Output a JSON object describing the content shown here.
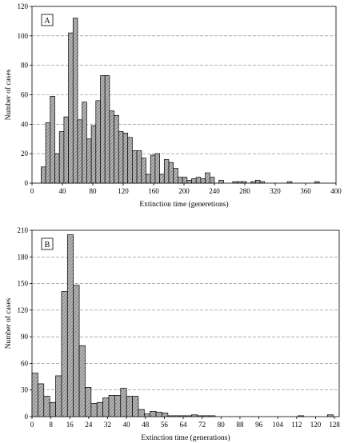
{
  "chart_data": [
    {
      "type": "bar",
      "panel_label": "A",
      "xlabel": "Extinction time (generetions)",
      "ylabel": "Number of cases",
      "xlim": [
        0,
        400
      ],
      "ylim": [
        0,
        120
      ],
      "xticks": [
        "0",
        "40",
        "80",
        "120",
        "160",
        "200",
        "240",
        "280",
        "320",
        "360",
        "400"
      ],
      "yticks": [
        "0",
        "20",
        "40",
        "60",
        "80",
        "100",
        "120"
      ],
      "bin_width": 6,
      "bins_start": [
        12,
        18,
        24,
        30,
        36,
        42,
        48,
        54,
        60,
        66,
        72,
        78,
        84,
        90,
        96,
        102,
        108,
        114,
        120,
        126,
        132,
        138,
        144,
        150,
        156,
        162,
        168,
        174,
        180,
        186,
        192,
        198,
        204,
        210,
        216,
        222,
        228,
        234,
        240,
        246,
        252,
        258,
        264,
        270,
        276,
        282,
        288,
        294,
        300,
        306,
        312,
        318,
        324,
        330,
        336,
        342,
        348,
        354,
        360,
        366,
        372,
        378,
        384,
        390
      ],
      "values": [
        11,
        41,
        59,
        20,
        35,
        45,
        102,
        112,
        43,
        55,
        30,
        39,
        56,
        73,
        73,
        49,
        46,
        35,
        34,
        31,
        22,
        22,
        17,
        6,
        19,
        20,
        6,
        16,
        14,
        10,
        4,
        4,
        2,
        3,
        4,
        3,
        7,
        4,
        0,
        2,
        0,
        0,
        1,
        1,
        1,
        0,
        1,
        2,
        1,
        0,
        0,
        0,
        0,
        0,
        1,
        0,
        0,
        0,
        0,
        0,
        1,
        0,
        0,
        0
      ],
      "grid": "horizontal dashed",
      "colors": {
        "bar_fill": "#a9a9a9",
        "bar_stroke": "#000000",
        "grid": "#808080"
      }
    },
    {
      "type": "bar",
      "panel_label": "B",
      "xlabel": "Extinction time (generations)",
      "ylabel": "Number of cases",
      "xlim": [
        0,
        130
      ],
      "ylim": [
        0,
        210
      ],
      "xticks": [
        "0",
        "8",
        "16",
        "24",
        "32",
        "40",
        "48",
        "56",
        "64",
        "72",
        "80",
        "88",
        "96",
        "104",
        "112",
        "120",
        "128"
      ],
      "yticks": [
        "0",
        "30",
        "60",
        "90",
        "120",
        "150",
        "180",
        "210"
      ],
      "bin_width": 2.5,
      "bins_start": [
        0,
        2.5,
        5,
        7.5,
        10,
        12.5,
        15,
        17.5,
        20,
        22.5,
        25,
        27.5,
        30,
        32.5,
        35,
        37.5,
        40,
        42.5,
        45,
        47.5,
        50,
        52.5,
        55,
        57.5,
        60,
        62.5,
        65,
        67.5,
        70,
        72.5,
        75,
        77.5,
        80,
        82.5,
        85,
        87.5,
        90,
        92.5,
        95,
        97.5,
        100,
        102.5,
        105,
        107.5,
        110,
        112.5,
        115,
        117.5,
        120,
        122.5,
        125,
        127.5
      ],
      "values": [
        49,
        37,
        23,
        16,
        46,
        141,
        205,
        148,
        80,
        33,
        15,
        16,
        21,
        24,
        24,
        32,
        23,
        23,
        8,
        3,
        6,
        5,
        4,
        1,
        1,
        1,
        1,
        2,
        1,
        1,
        1,
        0,
        0,
        0,
        0,
        0,
        0,
        0,
        0,
        0,
        0,
        0,
        0,
        0,
        0,
        1,
        0,
        0,
        0,
        0,
        2,
        0
      ],
      "grid": "horizontal dashed",
      "colors": {
        "bar_fill": "#a9a9a9",
        "bar_stroke": "#000000",
        "grid": "#808080"
      }
    }
  ]
}
